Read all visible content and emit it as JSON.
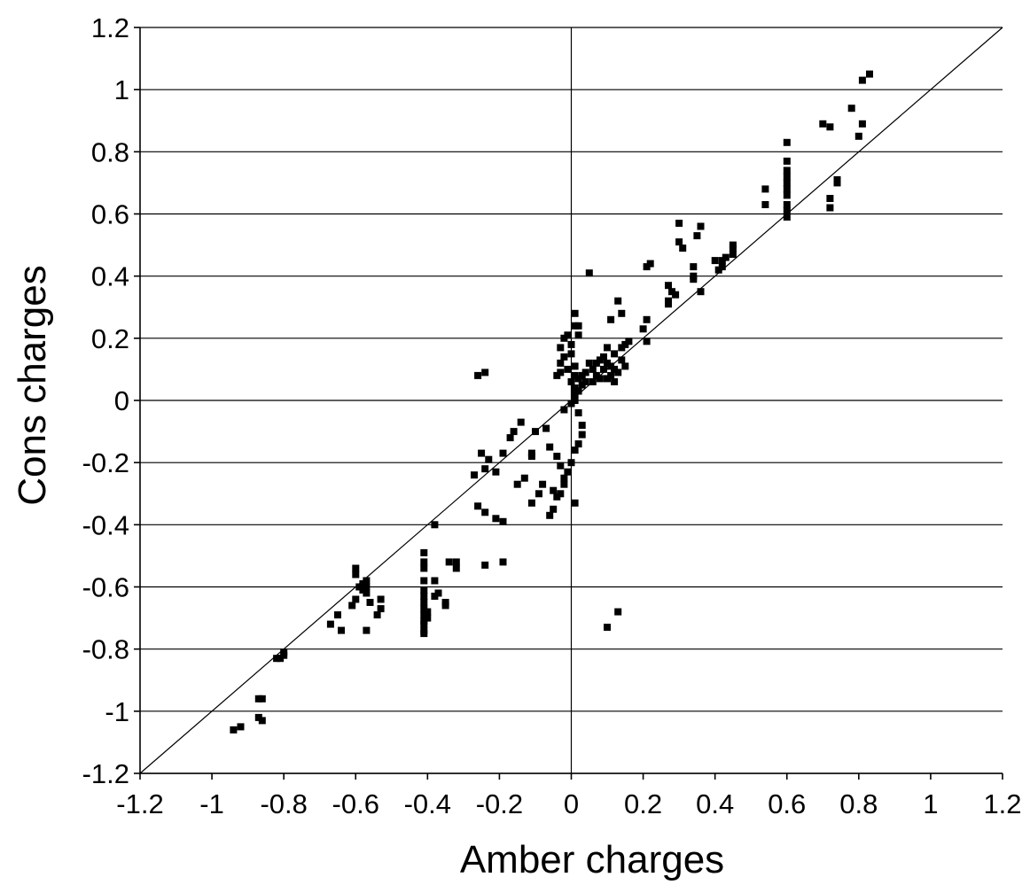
{
  "chart_data": {
    "type": "scatter",
    "title": "",
    "xlabel": "Amber charges",
    "ylabel": "Cons charges",
    "xlim": [
      -1.2,
      1.2
    ],
    "ylim": [
      -1.2,
      1.2
    ],
    "xticks": [
      "-1.2",
      "-1",
      "-0.8",
      "-0.6",
      "-0.4",
      "-0.2",
      "0",
      "0.2",
      "0.4",
      "0.6",
      "0.8",
      "1",
      "1.2"
    ],
    "yticks": [
      "-1.2",
      "-1",
      "-0.8",
      "-0.6",
      "-0.4",
      "-0.2",
      "0",
      "0.2",
      "0.4",
      "0.6",
      "0.8",
      "1",
      "1.2"
    ],
    "grid": "horizontal",
    "reference_line": "y = x",
    "marker": "square",
    "marker_color": "#000000",
    "points": [
      [
        0.83,
        1.05
      ],
      [
        0.81,
        1.03
      ],
      [
        0.78,
        0.94
      ],
      [
        0.81,
        0.89
      ],
      [
        0.8,
        0.85
      ],
      [
        0.7,
        0.89
      ],
      [
        0.72,
        0.88
      ],
      [
        0.74,
        0.71
      ],
      [
        0.74,
        0.7
      ],
      [
        0.72,
        0.65
      ],
      [
        0.72,
        0.62
      ],
      [
        0.6,
        0.83
      ],
      [
        0.6,
        0.77
      ],
      [
        0.6,
        0.74
      ],
      [
        0.6,
        0.72
      ],
      [
        0.6,
        0.7
      ],
      [
        0.6,
        0.68
      ],
      [
        0.6,
        0.66
      ],
      [
        0.6,
        0.63
      ],
      [
        0.6,
        0.61
      ],
      [
        0.6,
        0.59
      ],
      [
        0.54,
        0.68
      ],
      [
        0.54,
        0.63
      ],
      [
        0.45,
        0.5
      ],
      [
        0.45,
        0.49
      ],
      [
        0.45,
        0.47
      ],
      [
        0.43,
        0.46
      ],
      [
        0.42,
        0.45
      ],
      [
        0.42,
        0.43
      ],
      [
        0.41,
        0.42
      ],
      [
        0.4,
        0.45
      ],
      [
        0.36,
        0.56
      ],
      [
        0.35,
        0.53
      ],
      [
        0.3,
        0.57
      ],
      [
        0.3,
        0.51
      ],
      [
        0.31,
        0.49
      ],
      [
        0.34,
        0.43
      ],
      [
        0.34,
        0.4
      ],
      [
        0.34,
        0.39
      ],
      [
        0.36,
        0.35
      ],
      [
        0.27,
        0.37
      ],
      [
        0.28,
        0.35
      ],
      [
        0.29,
        0.34
      ],
      [
        0.27,
        0.32
      ],
      [
        0.27,
        0.31
      ],
      [
        0.22,
        0.44
      ],
      [
        0.21,
        0.43
      ],
      [
        0.21,
        0.26
      ],
      [
        0.2,
        0.23
      ],
      [
        0.21,
        0.19
      ],
      [
        0.13,
        0.32
      ],
      [
        0.14,
        0.28
      ],
      [
        0.05,
        0.41
      ],
      [
        0.11,
        0.26
      ],
      [
        0.16,
        0.19
      ],
      [
        0.15,
        0.18
      ],
      [
        0.14,
        0.17
      ],
      [
        0.1,
        0.17
      ],
      [
        0.12,
        0.15
      ],
      [
        0.09,
        0.14
      ],
      [
        0.08,
        0.13
      ],
      [
        0.1,
        0.12
      ],
      [
        0.11,
        0.11
      ],
      [
        0.12,
        0.1
      ],
      [
        0.13,
        0.09
      ],
      [
        0.07,
        0.08
      ],
      [
        0.06,
        0.1
      ],
      [
        0.05,
        0.12
      ],
      [
        0.04,
        0.09
      ],
      [
        0.03,
        0.08
      ],
      [
        0.02,
        0.07
      ],
      [
        0.03,
        0.05
      ],
      [
        0.01,
        0.04
      ],
      [
        0.02,
        0.03
      ],
      [
        0.04,
        0.06
      ],
      [
        0.08,
        0.07
      ],
      [
        0.1,
        0.07
      ],
      [
        0.12,
        0.06
      ],
      [
        0.14,
        0.13
      ],
      [
        0.15,
        0.11
      ],
      [
        0.09,
        0.1
      ],
      [
        0.11,
        0.08
      ],
      [
        0.07,
        0.12
      ],
      [
        0.06,
        0.06
      ],
      [
        0.01,
        0.28
      ],
      [
        0.01,
        0.24
      ],
      [
        -0.01,
        0.21
      ],
      [
        -0.02,
        0.2
      ],
      [
        -0.03,
        0.17
      ],
      [
        -0.02,
        0.14
      ],
      [
        -0.03,
        0.12
      ],
      [
        -0.01,
        0.1
      ],
      [
        -0.03,
        0.09
      ],
      [
        -0.04,
        0.08
      ],
      [
        0.02,
        0.24
      ],
      [
        0.02,
        0.21
      ],
      [
        0.0,
        0.18
      ],
      [
        0.0,
        0.15
      ],
      [
        0.01,
        0.11
      ],
      [
        0.01,
        0.08
      ],
      [
        0.0,
        0.06
      ],
      [
        0.01,
        0.02
      ],
      [
        0.01,
        0.0
      ],
      [
        0.0,
        -0.01
      ],
      [
        -0.02,
        -0.03
      ],
      [
        0.02,
        -0.04
      ],
      [
        0.03,
        -0.08
      ],
      [
        0.03,
        -0.11
      ],
      [
        0.02,
        -0.14
      ],
      [
        0.01,
        -0.16
      ],
      [
        0.0,
        -0.2
      ],
      [
        -0.01,
        -0.23
      ],
      [
        -0.02,
        -0.25
      ],
      [
        0.01,
        -0.33
      ],
      [
        -0.02,
        -0.27
      ],
      [
        -0.03,
        -0.3
      ],
      [
        -0.04,
        -0.31
      ],
      [
        -0.05,
        -0.29
      ],
      [
        -0.05,
        -0.35
      ],
      [
        -0.06,
        -0.37
      ],
      [
        -0.07,
        -0.09
      ],
      [
        -0.06,
        -0.15
      ],
      [
        -0.04,
        -0.18
      ],
      [
        -0.03,
        -0.21
      ],
      [
        -0.08,
        -0.27
      ],
      [
        -0.09,
        -0.3
      ],
      [
        -0.11,
        -0.33
      ],
      [
        -0.1,
        -0.1
      ],
      [
        -0.11,
        -0.17
      ],
      [
        -0.11,
        -0.18
      ],
      [
        -0.14,
        -0.07
      ],
      [
        -0.13,
        -0.25
      ],
      [
        -0.15,
        -0.27
      ],
      [
        -0.16,
        -0.1
      ],
      [
        -0.17,
        -0.12
      ],
      [
        -0.19,
        -0.17
      ],
      [
        -0.21,
        -0.23
      ],
      [
        -0.23,
        -0.19
      ],
      [
        -0.24,
        -0.22
      ],
      [
        -0.25,
        -0.17
      ],
      [
        -0.27,
        -0.24
      ],
      [
        -0.26,
        -0.34
      ],
      [
        -0.24,
        -0.36
      ],
      [
        -0.21,
        -0.38
      ],
      [
        -0.19,
        -0.39
      ],
      [
        -0.26,
        0.08
      ],
      [
        -0.24,
        0.09
      ],
      [
        -0.19,
        -0.52
      ],
      [
        -0.24,
        -0.53
      ],
      [
        -0.34,
        -0.52
      ],
      [
        -0.32,
        -0.52
      ],
      [
        -0.32,
        -0.54
      ],
      [
        -0.35,
        -0.65
      ],
      [
        -0.35,
        -0.66
      ],
      [
        -0.38,
        -0.4
      ],
      [
        -0.38,
        -0.58
      ],
      [
        -0.38,
        -0.63
      ],
      [
        -0.37,
        -0.62
      ],
      [
        -0.41,
        -0.49
      ],
      [
        -0.41,
        -0.52
      ],
      [
        -0.41,
        -0.54
      ],
      [
        -0.41,
        -0.58
      ],
      [
        -0.41,
        -0.61
      ],
      [
        -0.41,
        -0.63
      ],
      [
        -0.41,
        -0.65
      ],
      [
        -0.41,
        -0.67
      ],
      [
        -0.41,
        -0.69
      ],
      [
        -0.41,
        -0.71
      ],
      [
        -0.41,
        -0.72
      ],
      [
        -0.41,
        -0.74
      ],
      [
        -0.41,
        -0.75
      ],
      [
        -0.4,
        -0.7
      ],
      [
        -0.4,
        -0.68
      ],
      [
        -0.53,
        -0.64
      ],
      [
        -0.53,
        -0.67
      ],
      [
        -0.54,
        -0.69
      ],
      [
        -0.56,
        -0.65
      ],
      [
        -0.57,
        -0.74
      ],
      [
        -0.57,
        -0.58
      ],
      [
        -0.57,
        -0.6
      ],
      [
        -0.57,
        -0.62
      ],
      [
        -0.58,
        -0.59
      ],
      [
        -0.58,
        -0.61
      ],
      [
        -0.59,
        -0.6
      ],
      [
        -0.6,
        -0.54
      ],
      [
        -0.6,
        -0.56
      ],
      [
        -0.6,
        -0.64
      ],
      [
        -0.61,
        -0.66
      ],
      [
        -0.64,
        -0.74
      ],
      [
        -0.65,
        -0.69
      ],
      [
        -0.67,
        -0.72
      ],
      [
        -0.8,
        -0.81
      ],
      [
        -0.8,
        -0.82
      ],
      [
        -0.81,
        -0.83
      ],
      [
        -0.82,
        -0.83
      ],
      [
        -0.86,
        -0.96
      ],
      [
        -0.87,
        -0.96
      ],
      [
        -0.87,
        -1.02
      ],
      [
        -0.86,
        -1.03
      ],
      [
        -0.92,
        -1.05
      ],
      [
        -0.94,
        -1.06
      ],
      [
        0.1,
        -0.73
      ],
      [
        0.13,
        -0.68
      ]
    ]
  }
}
